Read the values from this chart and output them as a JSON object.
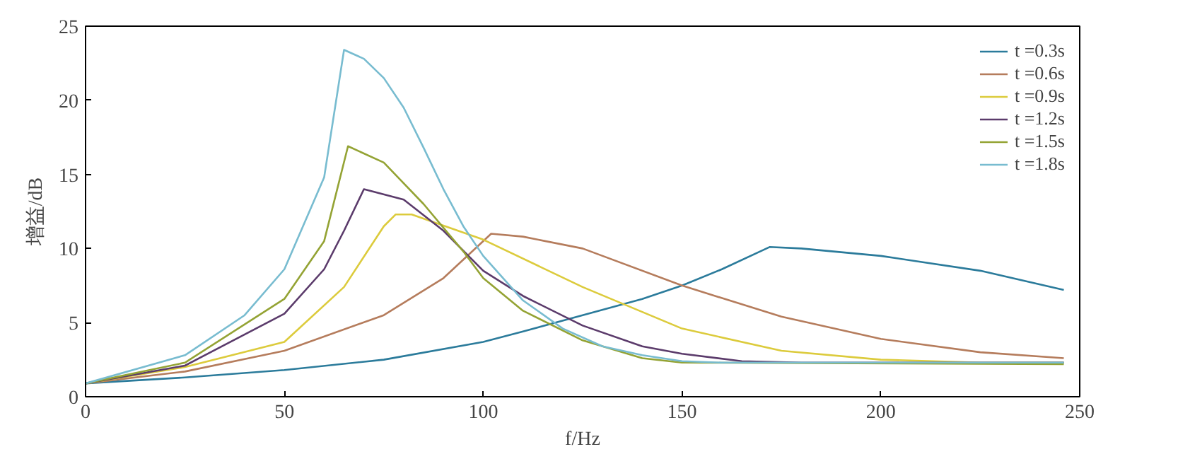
{
  "chart_data": {
    "type": "line",
    "xlabel": "f/Hz",
    "ylabel": "增益/dB",
    "xlim": [
      0,
      250
    ],
    "ylim": [
      0,
      25
    ],
    "xticks": [
      0,
      50,
      100,
      150,
      200,
      250
    ],
    "yticks": [
      0,
      5,
      10,
      15,
      20,
      25
    ],
    "grid": false,
    "legend": "top right",
    "line_style": "solid",
    "marker": "none",
    "series": [
      {
        "name": "t =0.3s",
        "color": "#2b7b9b",
        "x": [
          0,
          25,
          50,
          75,
          100,
          110,
          125,
          140,
          150,
          160,
          172,
          180,
          200,
          225,
          246
        ],
        "values": [
          0.9,
          1.3,
          1.8,
          2.5,
          3.7,
          4.4,
          5.5,
          6.6,
          7.5,
          8.6,
          10.1,
          10.0,
          9.5,
          8.5,
          7.2
        ]
      },
      {
        "name": "t =0.6s",
        "color": "#b57c5c",
        "x": [
          0,
          25,
          50,
          75,
          90,
          102,
          110,
          125,
          150,
          175,
          200,
          225,
          246
        ],
        "values": [
          0.9,
          1.7,
          3.1,
          5.5,
          8.0,
          11.0,
          10.8,
          10.0,
          7.5,
          5.4,
          3.9,
          3.0,
          2.6
        ]
      },
      {
        "name": "t =0.9s",
        "color": "#dccb3c",
        "x": [
          0,
          25,
          50,
          65,
          75,
          78,
          82,
          100,
          125,
          150,
          175,
          200,
          225,
          246
        ],
        "values": [
          0.9,
          2.0,
          3.7,
          7.4,
          11.5,
          12.3,
          12.3,
          10.6,
          7.4,
          4.6,
          3.1,
          2.5,
          2.3,
          2.3
        ]
      },
      {
        "name": "t =1.2s",
        "color": "#5b3b6b",
        "x": [
          0,
          25,
          50,
          60,
          65,
          70,
          80,
          90,
          100,
          110,
          125,
          140,
          150,
          165,
          180,
          246
        ],
        "values": [
          0.9,
          2.1,
          5.6,
          8.6,
          11.2,
          14.0,
          13.3,
          11.2,
          8.5,
          6.8,
          4.8,
          3.4,
          2.9,
          2.4,
          2.3,
          2.3
        ]
      },
      {
        "name": "t =1.5s",
        "color": "#94a334",
        "x": [
          0,
          25,
          50,
          60,
          66,
          75,
          85,
          95,
          100,
          110,
          125,
          140,
          150,
          246
        ],
        "values": [
          0.9,
          2.3,
          6.6,
          10.5,
          16.9,
          15.8,
          13.0,
          9.8,
          8.0,
          5.8,
          3.8,
          2.6,
          2.3,
          2.2
        ]
      },
      {
        "name": "t =1.8s",
        "color": "#78bcd0",
        "x": [
          0,
          25,
          40,
          50,
          60,
          65,
          70,
          75,
          80,
          85,
          90,
          95,
          100,
          110,
          120,
          130,
          140,
          150,
          160,
          246
        ],
        "values": [
          0.9,
          2.8,
          5.5,
          8.6,
          14.8,
          23.4,
          22.8,
          21.5,
          19.5,
          16.8,
          14.0,
          11.5,
          9.5,
          6.5,
          4.6,
          3.4,
          2.8,
          2.4,
          2.3,
          2.3
        ]
      }
    ]
  }
}
